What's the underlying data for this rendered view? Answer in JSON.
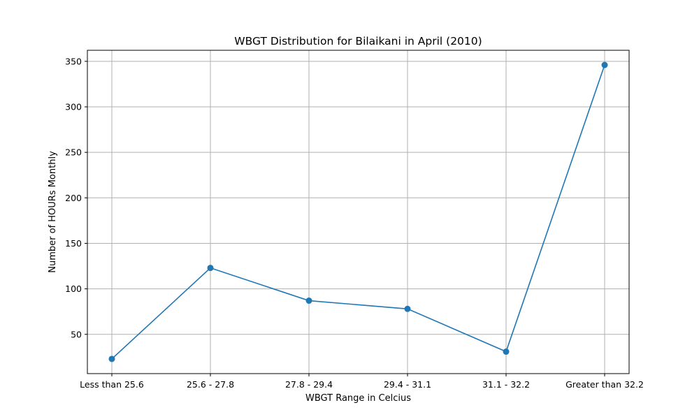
{
  "chart_data": {
    "type": "line",
    "title": "WBGT Distribution for Bilaikani in April (2010)",
    "xlabel": "WBGT Range in Celcius",
    "ylabel": "Number of HOURs Monthly",
    "categories": [
      "Less than 25.6",
      "25.6 - 27.8",
      "27.8 - 29.4",
      "29.4 - 31.1",
      "31.1 - 32.2",
      "Greater than 32.2"
    ],
    "series": [
      {
        "values": [
          23,
          123,
          87,
          78,
          31,
          346
        ]
      }
    ],
    "yticks": [
      50,
      100,
      150,
      200,
      250,
      300,
      350
    ],
    "ylim": [
      6.85,
      362.15
    ],
    "grid": true,
    "color": "#1f77b4"
  }
}
